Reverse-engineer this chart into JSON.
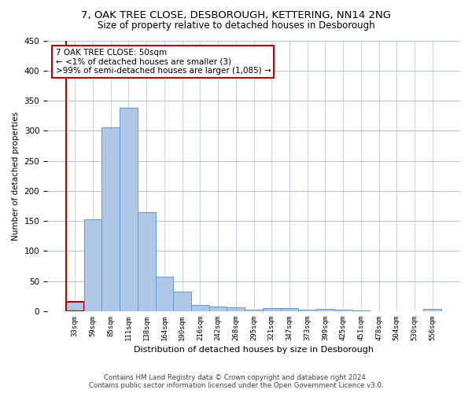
{
  "title": "7, OAK TREE CLOSE, DESBOROUGH, KETTERING, NN14 2NG",
  "subtitle": "Size of property relative to detached houses in Desborough",
  "xlabel": "Distribution of detached houses by size in Desborough",
  "ylabel": "Number of detached properties",
  "footer_line1": "Contains HM Land Registry data © Crown copyright and database right 2024.",
  "footer_line2": "Contains public sector information licensed under the Open Government Licence v3.0.",
  "annotation_line1": "7 OAK TREE CLOSE: 50sqm",
  "annotation_line2": "← <1% of detached houses are smaller (3)",
  "annotation_line3": ">99% of semi-detached houses are larger (1,085) →",
  "bar_values": [
    15,
    153,
    305,
    338,
    165,
    57,
    33,
    10,
    8,
    6,
    3,
    5,
    5,
    3,
    4,
    2,
    1,
    0,
    0,
    0,
    4
  ],
  "bar_labels": [
    "33sqm",
    "59sqm",
    "85sqm",
    "111sqm",
    "138sqm",
    "164sqm",
    "190sqm",
    "216sqm",
    "242sqm",
    "268sqm",
    "295sqm",
    "321sqm",
    "347sqm",
    "373sqm",
    "399sqm",
    "425sqm",
    "451sqm",
    "478sqm",
    "504sqm",
    "530sqm",
    "556sqm"
  ],
  "bar_color": "#aec6e8",
  "bar_edge_color": "#5b9bd5",
  "highlight_bar_index": 0,
  "highlight_color": "#c00000",
  "annotation_box_color": "#c00000",
  "background_color": "#ffffff",
  "grid_color": "#b0c4de",
  "ylim": [
    0,
    450
  ],
  "yticks": [
    0,
    50,
    100,
    150,
    200,
    250,
    300,
    350,
    400,
    450
  ]
}
